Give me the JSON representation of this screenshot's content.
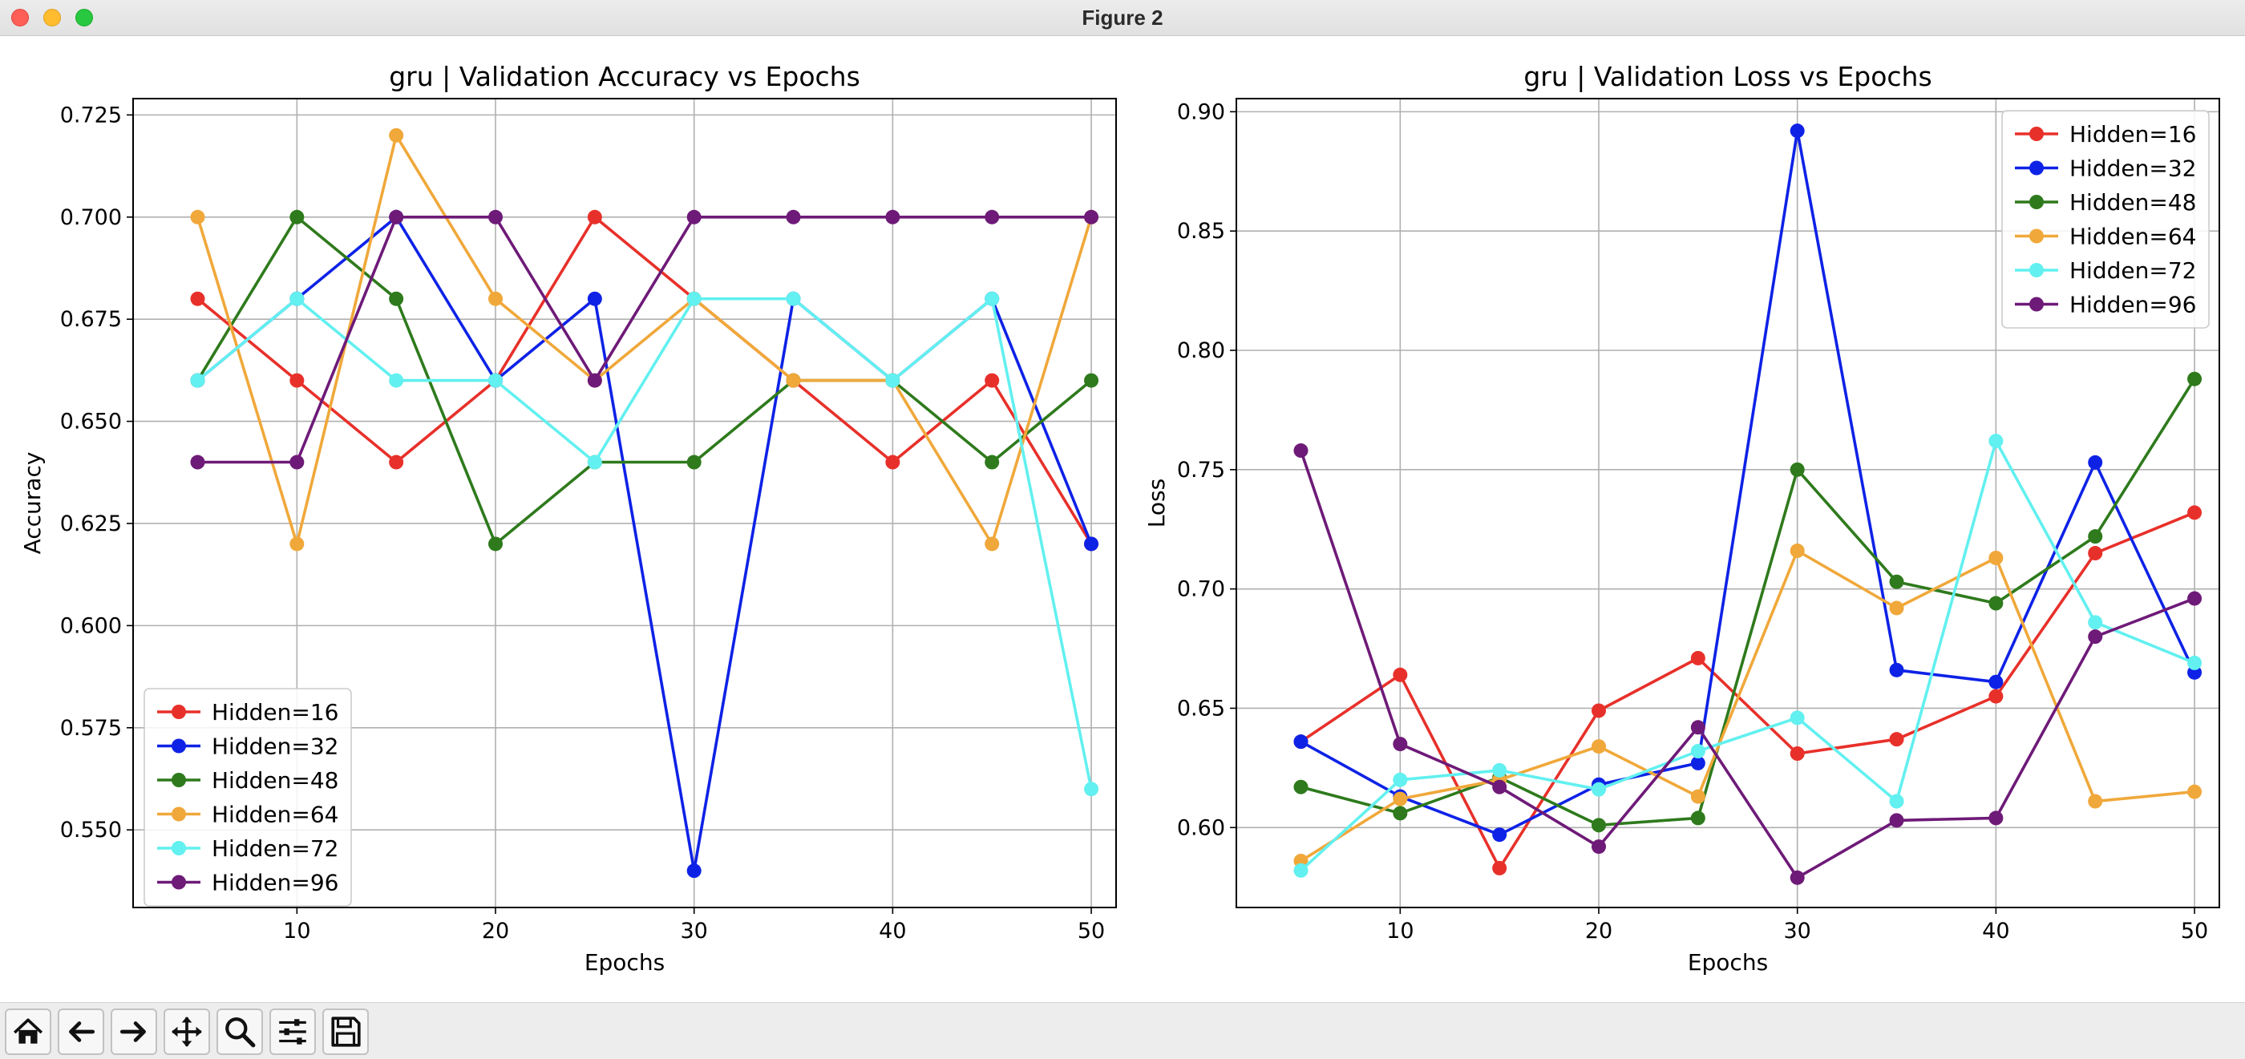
{
  "window": {
    "title": "Figure 2"
  },
  "toolbar": {
    "buttons": [
      {
        "icon": "home-icon",
        "label": "Home"
      },
      {
        "icon": "back-arrow-icon",
        "label": "Back"
      },
      {
        "icon": "forward-arrow-icon",
        "label": "Forward"
      },
      {
        "icon": "pan-move-icon",
        "label": "Pan"
      },
      {
        "icon": "zoom-magnifier-icon",
        "label": "Zoom"
      },
      {
        "icon": "configure-subplots-icon",
        "label": "Subplots"
      },
      {
        "icon": "save-floppy-icon",
        "label": "Save"
      }
    ]
  },
  "colors": {
    "Hidden=16": "#e8302a",
    "Hidden=32": "#0e22e6",
    "Hidden=48": "#2e7a1c",
    "Hidden=64": "#f0a83a",
    "Hidden=72": "#62f0f0",
    "Hidden=96": "#6e1a78"
  },
  "chart_data": [
    {
      "type": "line",
      "title": "gru | Validation Accuracy vs Epochs",
      "xlabel": "Epochs",
      "ylabel": "Accuracy",
      "x": [
        5,
        10,
        15,
        20,
        25,
        30,
        35,
        40,
        45,
        50
      ],
      "xticks": [
        "10",
        "20",
        "30",
        "40",
        "50"
      ],
      "yticks": [
        "0.550",
        "0.575",
        "0.600",
        "0.625",
        "0.650",
        "0.675",
        "0.700",
        "0.725"
      ],
      "xlim": [
        1.75,
        51.25
      ],
      "ylim": [
        0.531,
        0.729
      ],
      "grid": true,
      "legend_position": "lower-left",
      "series": [
        {
          "name": "Hidden=16",
          "values": [
            0.68,
            0.66,
            0.64,
            0.66,
            0.7,
            0.68,
            0.66,
            0.64,
            0.66,
            0.62
          ]
        },
        {
          "name": "Hidden=32",
          "values": [
            0.66,
            0.68,
            0.7,
            0.66,
            0.68,
            0.54,
            0.68,
            0.66,
            0.68,
            0.62
          ]
        },
        {
          "name": "Hidden=48",
          "values": [
            0.66,
            0.7,
            0.68,
            0.62,
            0.64,
            0.64,
            0.66,
            0.66,
            0.64,
            0.66
          ]
        },
        {
          "name": "Hidden=64",
          "values": [
            0.7,
            0.62,
            0.72,
            0.68,
            0.66,
            0.68,
            0.66,
            0.66,
            0.62,
            0.7
          ]
        },
        {
          "name": "Hidden=72",
          "values": [
            0.66,
            0.68,
            0.66,
            0.66,
            0.64,
            0.68,
            0.68,
            0.66,
            0.68,
            0.56
          ]
        },
        {
          "name": "Hidden=96",
          "values": [
            0.64,
            0.64,
            0.7,
            0.7,
            0.66,
            0.7,
            0.7,
            0.7,
            0.7,
            0.7
          ]
        }
      ]
    },
    {
      "type": "line",
      "title": "gru | Validation Loss vs Epochs",
      "xlabel": "Epochs",
      "ylabel": "Loss",
      "x": [
        5,
        10,
        15,
        20,
        25,
        30,
        35,
        40,
        45,
        50
      ],
      "xticks": [
        "10",
        "20",
        "30",
        "40",
        "50"
      ],
      "yticks": [
        "0.60",
        "0.65",
        "0.70",
        "0.75",
        "0.80",
        "0.85",
        "0.90"
      ],
      "xlim": [
        1.75,
        51.25
      ],
      "ylim": [
        0.5665,
        0.9055
      ],
      "grid": true,
      "legend_position": "upper-right",
      "series": [
        {
          "name": "Hidden=16",
          "values": [
            0.636,
            0.664,
            0.583,
            0.649,
            0.671,
            0.631,
            0.637,
            0.655,
            0.715,
            0.732
          ]
        },
        {
          "name": "Hidden=32",
          "values": [
            0.636,
            0.613,
            0.597,
            0.618,
            0.627,
            0.892,
            0.666,
            0.661,
            0.753,
            0.665
          ]
        },
        {
          "name": "Hidden=48",
          "values": [
            0.617,
            0.606,
            0.621,
            0.601,
            0.604,
            0.75,
            0.703,
            0.694,
            0.722,
            0.788
          ]
        },
        {
          "name": "Hidden=64",
          "values": [
            0.586,
            0.612,
            0.62,
            0.634,
            0.613,
            0.716,
            0.692,
            0.713,
            0.611,
            0.615
          ]
        },
        {
          "name": "Hidden=72",
          "values": [
            0.582,
            0.62,
            0.624,
            0.616,
            0.632,
            0.646,
            0.611,
            0.762,
            0.686,
            0.669
          ]
        },
        {
          "name": "Hidden=96",
          "values": [
            0.758,
            0.635,
            0.617,
            0.592,
            0.642,
            0.579,
            0.603,
            0.604,
            0.68,
            0.696
          ]
        }
      ]
    }
  ]
}
